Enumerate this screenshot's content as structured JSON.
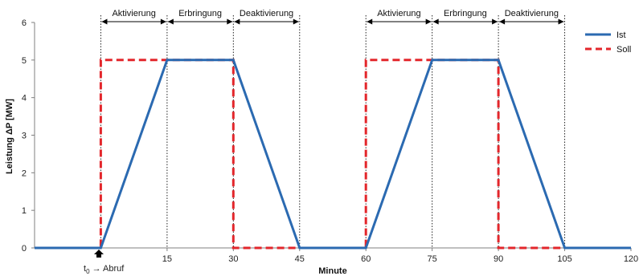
{
  "chart_data": {
    "type": "line",
    "xlabel": "Minute",
    "ylabel": "Leistung ΔP [MW]",
    "xlim": [
      -15,
      120
    ],
    "ylim": [
      0,
      6
    ],
    "x_ticks": [
      15,
      30,
      45,
      60,
      75,
      90,
      105,
      120
    ],
    "y_ticks": [
      0,
      1,
      2,
      3,
      4,
      5,
      6
    ],
    "grid": false,
    "legend_position": "top-right",
    "series": [
      {
        "name": "Ist",
        "color": "#2b6ab1",
        "style": "solid",
        "points": [
          [
            -15,
            0
          ],
          [
            0,
            0
          ],
          [
            15,
            5
          ],
          [
            30,
            5
          ],
          [
            45,
            0
          ],
          [
            60,
            0
          ],
          [
            75,
            5
          ],
          [
            90,
            5
          ],
          [
            105,
            0
          ],
          [
            120,
            0
          ]
        ]
      },
      {
        "name": "Soll",
        "color": "#e3262b",
        "style": "dashed",
        "points": [
          [
            -15,
            0
          ],
          [
            0,
            0
          ],
          [
            0,
            5
          ],
          [
            30,
            5
          ],
          [
            30,
            0
          ],
          [
            60,
            0
          ],
          [
            60,
            5
          ],
          [
            90,
            5
          ],
          [
            90,
            0
          ],
          [
            120,
            0
          ]
        ]
      }
    ],
    "phase_markers": [
      0,
      15,
      30,
      45,
      60,
      75,
      90,
      105
    ],
    "phases": [
      {
        "label": "Aktivierung",
        "from": 0,
        "to": 15
      },
      {
        "label": "Erbringung",
        "from": 15,
        "to": 30
      },
      {
        "label": "Deaktivierung",
        "from": 30,
        "to": 45
      },
      {
        "label": "Aktivierung",
        "from": 60,
        "to": 75
      },
      {
        "label": "Erbringung",
        "from": 75,
        "to": 90
      },
      {
        "label": "Deaktivierung",
        "from": 90,
        "to": 105
      }
    ],
    "annotation": {
      "x": 0,
      "t_symbol": "t",
      "t_subscript": "0",
      "arrow_glyph": "→",
      "text": "Abruf"
    }
  }
}
